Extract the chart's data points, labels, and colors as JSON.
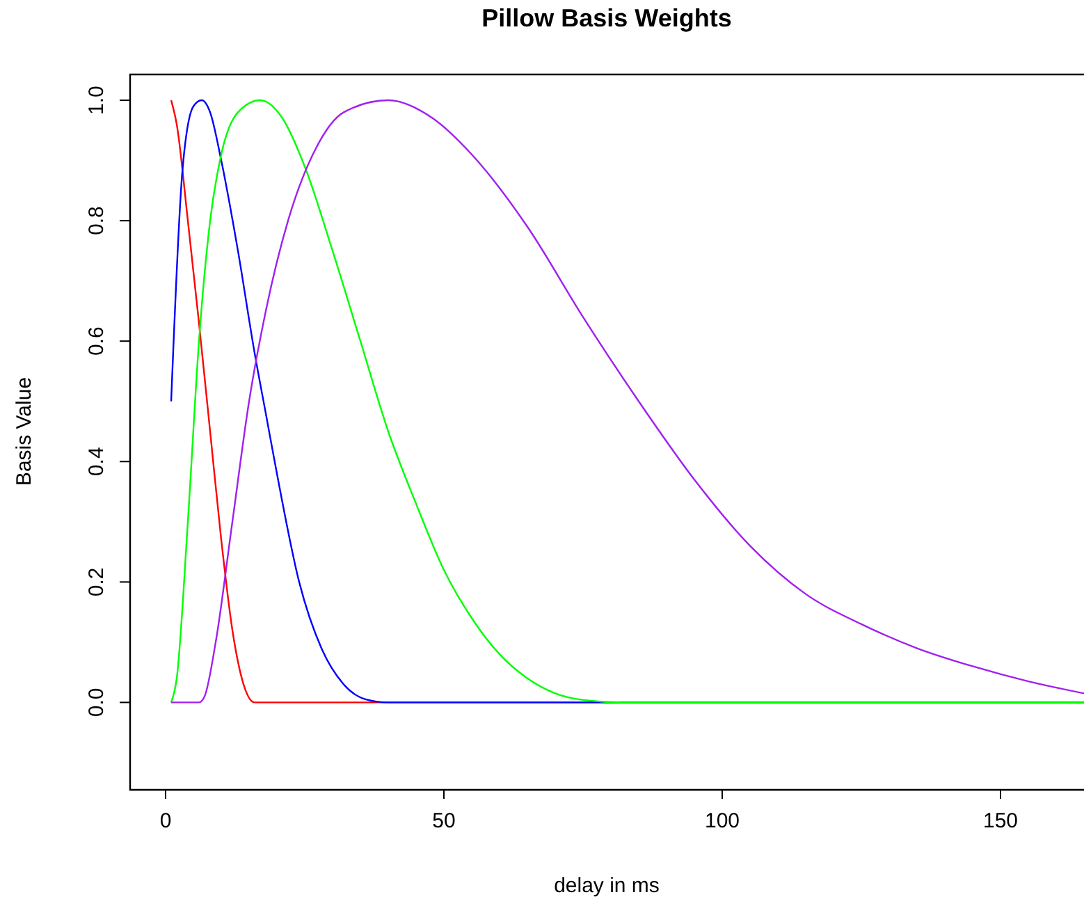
{
  "chart_data": {
    "type": "line",
    "title": "Pillow Basis Weights",
    "xlabel": "delay in ms",
    "ylabel": "Basis Value",
    "xlim": [
      -6.5,
      165
    ],
    "xticks": [
      0,
      50,
      100,
      150
    ],
    "ylim": [
      -0.144,
      1.044
    ],
    "yticks": [
      {
        "value": 0,
        "label": "0.0"
      },
      {
        "value": 0.2,
        "label": "0.2"
      },
      {
        "value": 0.4,
        "label": "0.4"
      },
      {
        "value": 0.6,
        "label": "0.6"
      },
      {
        "value": 0.8,
        "label": "0.8"
      },
      {
        "value": 1,
        "label": "1.0"
      }
    ],
    "marker": "none",
    "line_style": "solid",
    "series": [
      {
        "color": "#ff0000",
        "x": [
          1,
          2,
          4,
          6,
          8,
          10,
          12,
          14,
          16,
          165
        ],
        "values": [
          1.0,
          0.96,
          0.8,
          0.63,
          0.45,
          0.27,
          0.12,
          0.03,
          0,
          0
        ]
      },
      {
        "color": "#0000ff",
        "x": [
          1,
          3,
          5,
          6.5,
          8,
          10,
          13,
          16,
          18,
          20,
          24,
          28,
          32,
          36,
          40,
          165
        ],
        "values": [
          0.5,
          0.88,
          0.99,
          1.0,
          0.98,
          0.9,
          0.75,
          0.58,
          0.48,
          0.38,
          0.2,
          0.09,
          0.03,
          0.005,
          0,
          0
        ]
      },
      {
        "color": "#00ff00",
        "x": [
          1,
          2,
          4,
          6,
          8,
          10,
          13,
          17,
          21,
          25,
          30,
          35,
          40,
          45,
          50,
          55,
          60,
          65,
          70,
          75,
          82,
          165
        ],
        "values": [
          0,
          0.04,
          0.3,
          0.6,
          0.8,
          0.91,
          0.98,
          1.0,
          0.97,
          0.89,
          0.75,
          0.6,
          0.45,
          0.33,
          0.22,
          0.14,
          0.08,
          0.04,
          0.015,
          0.004,
          0,
          0
        ]
      },
      {
        "color": "#a020f0",
        "x": [
          1,
          6,
          7,
          9,
          12,
          15,
          18,
          22,
          27,
          32,
          40,
          48,
          55,
          65,
          75,
          85,
          95,
          105,
          115,
          125,
          135,
          145,
          155,
          165
        ],
        "values": [
          0,
          0,
          0.01,
          0.1,
          0.3,
          0.5,
          0.65,
          0.8,
          0.92,
          0.98,
          1.0,
          0.97,
          0.91,
          0.79,
          0.64,
          0.5,
          0.37,
          0.26,
          0.18,
          0.13,
          0.09,
          0.06,
          0.035,
          0.015
        ]
      }
    ]
  }
}
